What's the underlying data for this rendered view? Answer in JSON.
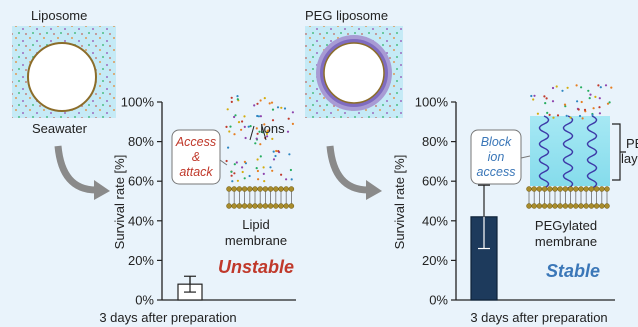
{
  "left_panel": {
    "title": "Liposome",
    "seawater_label": "Seawater",
    "callout": [
      "Access",
      "&",
      "attack"
    ],
    "ions_label": "Ions",
    "membrane_label": [
      "Lipid",
      "membrane"
    ],
    "verdict": "Unstable",
    "xlabel": "3 days after preparation"
  },
  "right_panel": {
    "title": "PEG liposome",
    "callout": [
      "Block",
      "ion",
      "access"
    ],
    "peg_layer_label": [
      "PEG",
      "layer"
    ],
    "membrane_label": [
      "PEGylated",
      "membrane"
    ],
    "verdict": "Stable",
    "xlabel": "3 days after preparation"
  },
  "colors": {
    "unstable": "#c0392b",
    "stable": "#3b77b8",
    "bar_stable": "#1d3a5c",
    "peg_band": "#8f7cc4",
    "water": "#c5eaf6"
  },
  "chart_data": [
    {
      "type": "bar",
      "categories": [
        "3 days after preparation"
      ],
      "values": [
        8
      ],
      "error": [
        4
      ],
      "ylabel": "Survival rate [%]",
      "yticks": [
        "0%",
        "20%",
        "40%",
        "60%",
        "80%",
        "100%"
      ],
      "ylim": [
        0,
        100
      ]
    },
    {
      "type": "bar",
      "categories": [
        "3 days after preparation"
      ],
      "values": [
        42
      ],
      "error": [
        16
      ],
      "ylabel": "Survival rate [%]",
      "yticks": [
        "0%",
        "20%",
        "40%",
        "60%",
        "80%",
        "100%"
      ],
      "ylim": [
        0,
        100
      ]
    }
  ]
}
